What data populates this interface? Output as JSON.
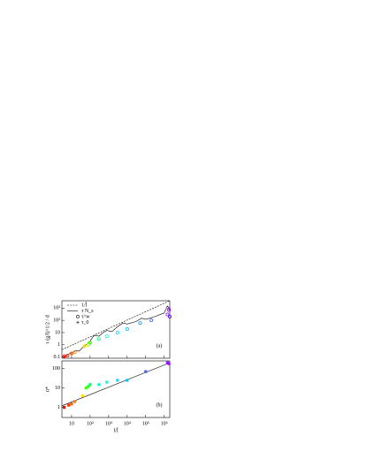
{
  "chart_data": [
    {
      "type": "scatter",
      "ylabel": "τ (g/l)^1/2 / d",
      "annotation": "(a)",
      "log_x": true,
      "log_y": true,
      "xlim": [
        3,
        2000000
      ],
      "ylim": [
        0.08,
        4000
      ],
      "xticks": [
        10,
        100,
        1000,
        10000,
        100000,
        1000000
      ],
      "yticks": [
        0.1,
        1,
        10,
        {
          "value": 100,
          "label": "10²"
        },
        {
          "value": 1000,
          "label": "10³"
        }
      ],
      "legend": "upper left",
      "series": [
        {
          "name": "1/l̄",
          "kind": "line",
          "dash": true,
          "color": "#000000",
          "x": [
            3,
            2000000
          ],
          "values": [
            0.4,
            4000
          ]
        },
        {
          "name": "τ N_s",
          "kind": "line",
          "dash": false,
          "color": "#000000",
          "x": [
            3,
            5,
            8,
            12,
            18,
            25,
            40,
            60,
            100,
            150,
            200,
            300,
            500,
            800,
            1500,
            3000,
            6000,
            10000,
            30000,
            60000,
            100000,
            300000,
            1000000,
            1500000,
            2000000
          ],
          "values": [
            0.1,
            0.12,
            0.2,
            0.25,
            0.35,
            0.3,
            0.6,
            1,
            2,
            5,
            6,
            5,
            10,
            15,
            12,
            30,
            60,
            50,
            80,
            150,
            120,
            200,
            400,
            1500,
            800
          ]
        },
        {
          "name": "τ^w",
          "kind": "marker",
          "marker": "circle",
          "x": [
            4,
            6,
            10,
            15,
            50,
            80,
            100,
            300,
            800,
            3000,
            10000,
            50000,
            200000,
            1500000,
            1800000,
            2000000
          ],
          "values": [
            0.12,
            0.13,
            0.2,
            0.25,
            0.8,
            1,
            1.5,
            3,
            5,
            10,
            20,
            60,
            100,
            300,
            700,
            200
          ],
          "colors": [
            "#ff0000",
            "#ff2000",
            "#ff6000",
            "#ff8000",
            "#ffe000",
            "#c0ff00",
            "#40ff00",
            "#00ff80",
            "#00ffe0",
            "#00e0ff",
            "#00c0ff",
            "#00a0ff",
            "#4060ff",
            "#8020ff",
            "#a000ff",
            "#6000ff"
          ]
        },
        {
          "name": "τ_0",
          "kind": "marker",
          "marker": "plus",
          "x": [
            4,
            10,
            50,
            100,
            1800000
          ],
          "values": [
            0.1,
            0.18,
            0.7,
            1.3,
            900
          ],
          "colors": [
            "#ff0000",
            "#ff6000",
            "#ffe000",
            "#40ff00",
            "#a000ff"
          ]
        }
      ]
    },
    {
      "type": "scatter",
      "ylabel": "n*",
      "xlabel": "l/l̄",
      "annotation": "(b)",
      "log_x": true,
      "log_y": true,
      "xlim": [
        3,
        2000000
      ],
      "ylim": [
        0.3,
        250
      ],
      "xticks": [
        10,
        {
          "value": 100,
          "label": "10²"
        },
        {
          "value": 1000,
          "label": "10³"
        },
        {
          "value": 10000,
          "label": "10⁴"
        },
        {
          "value": 100000,
          "label": "10⁵"
        },
        {
          "value": 1000000,
          "label": "10⁶"
        }
      ],
      "yticks": [
        1,
        10,
        100
      ],
      "series": [
        {
          "kind": "line",
          "dash": false,
          "color": "#000000",
          "x": [
            3,
            2000000
          ],
          "values": [
            1.2,
            200
          ]
        },
        {
          "kind": "marker",
          "marker": "square",
          "x": [
            4,
            7,
            10,
            15,
            40,
            60,
            80,
            100,
            300,
            800,
            3000,
            10000,
            100000,
            1500000,
            1800000
          ],
          "values": [
            1,
            1.3,
            1.5,
            2,
            4,
            10,
            12,
            15,
            15,
            20,
            25,
            25,
            70,
            200,
            180
          ],
          "colors": [
            "#ff0000",
            "#ff3000",
            "#ff6000",
            "#ff8000",
            "#ffe000",
            "#40ff00",
            "#20ff20",
            "#00ff60",
            "#00ffc0",
            "#00ffe0",
            "#00e0ff",
            "#00c0ff",
            "#4060ff",
            "#8020ff",
            "#a000ff"
          ]
        }
      ]
    }
  ]
}
